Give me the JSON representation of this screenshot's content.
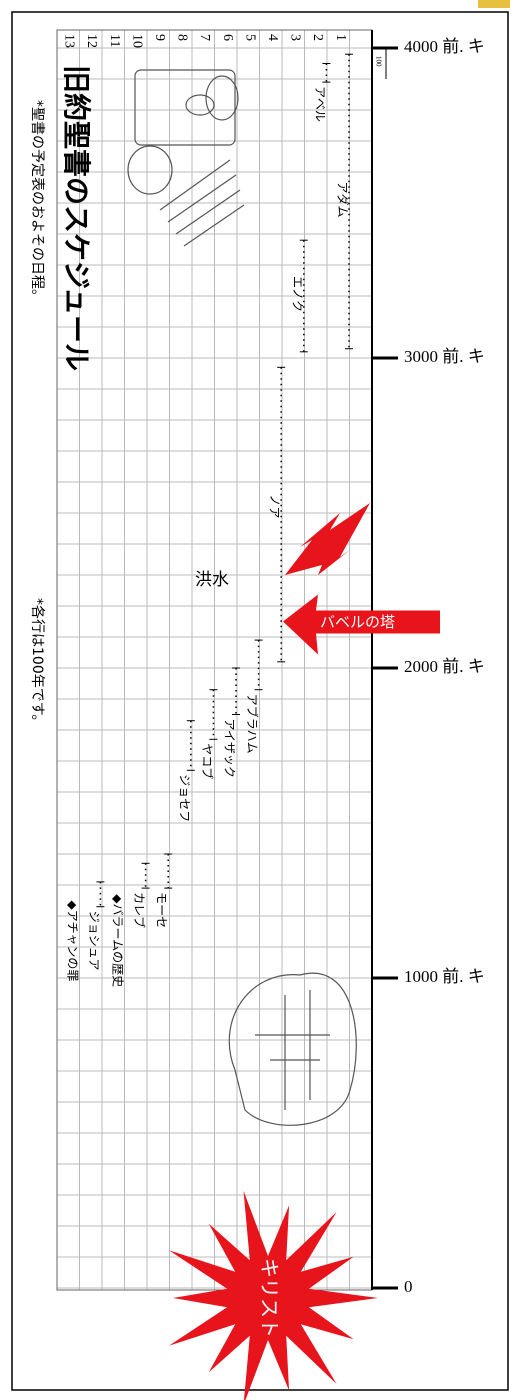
{
  "title": "旧約聖書のスケジュール",
  "notes": [
    "*聖書の予定表のおよその日程。",
    "*各行は100年です。"
  ],
  "scale_label": 100,
  "axis": {
    "lim": [
      4000,
      0
    ],
    "ticks": [
      {
        "value": 4000,
        "label": "4000 前. キ"
      },
      {
        "value": 3000,
        "label": "3000 前. キ"
      },
      {
        "value": 2000,
        "label": "2000 前. キ"
      },
      {
        "value": 1000,
        "label": "1000 前. キ"
      },
      0
    ]
  },
  "rows": [
    1,
    2,
    3,
    4,
    5,
    6,
    7,
    8,
    9,
    10,
    11,
    12,
    13
  ],
  "lanes": [
    {
      "name": "アダム",
      "start": 3980,
      "end": 3030
    },
    {
      "name": "アベル",
      "start": 3950,
      "end": 3890
    },
    {
      "name": "エノク",
      "start": 3380,
      "end": 3020
    },
    {
      "name": "ノア",
      "start": 2970,
      "end": 2020
    },
    {
      "name": "アブラハム",
      "start": 2090,
      "end": 1930
    },
    {
      "name": "アイザック",
      "start": 2000,
      "end": 1850
    },
    {
      "name": "ヤコブ",
      "start": 1930,
      "end": 1770
    },
    {
      "name": "ジョセフ",
      "start": 1830,
      "end": 1670
    },
    {
      "name": "モーセ",
      "start": 1400,
      "end": 1290
    },
    {
      "name": "カレブ",
      "start": 1370,
      "end": 1290
    },
    {
      "name": "◆バラームの歴史",
      "year": 1270
    },
    {
      "name": "ジョシュア",
      "start": 1310,
      "end": 1230
    },
    {
      "name": "◆アチャンの罪",
      "year": 1250
    }
  ],
  "events": [
    {
      "label": "洪水",
      "year": 2300
    },
    {
      "label": "バベルの塔",
      "year": 2150
    },
    {
      "label": "キリスト",
      "year": 0
    }
  ]
}
